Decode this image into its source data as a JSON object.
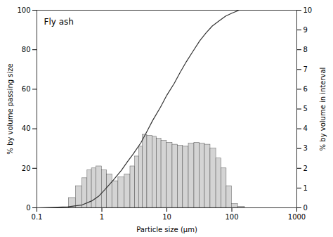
{
  "chart_data": {
    "type": "bar",
    "title": "Fly ash",
    "xlabel": "Particle size (μm)",
    "ylabel": "% by volume passing size",
    "y2label": "% by volume in interval",
    "log": "x",
    "grid": false,
    "xlim": [
      0.1,
      1000
    ],
    "xticks": [
      0.1,
      1,
      10,
      100,
      1000
    ],
    "ylim": [
      0,
      100
    ],
    "yticks": [
      0,
      20,
      40,
      60,
      80,
      100
    ],
    "y2lim": [
      0,
      10
    ],
    "y2ticks": [
      0,
      1,
      2,
      3,
      4,
      5,
      6,
      7,
      8,
      9,
      10
    ],
    "series": [
      {
        "type": "bar",
        "axis": "y2",
        "color": "#d4d4d4",
        "x": [
          0.35,
          0.45,
          0.55,
          0.65,
          0.75,
          0.9,
          1.1,
          1.3,
          1.6,
          2.0,
          2.5,
          3.0,
          3.5,
          4.0,
          4.5,
          5.5,
          6.5,
          7.5,
          9.0,
          11.0,
          13.5,
          16.0,
          19.5,
          24.0,
          29.0,
          35.0,
          42.0,
          52.0,
          63.0,
          76.0,
          90.0,
          110.0,
          140.0
        ],
        "values": [
          0.5,
          1.1,
          1.5,
          1.9,
          2.0,
          2.1,
          1.9,
          1.7,
          1.35,
          1.55,
          1.7,
          2.1,
          2.6,
          3.1,
          3.7,
          3.65,
          3.6,
          3.5,
          3.4,
          3.3,
          3.2,
          3.15,
          3.1,
          3.25,
          3.3,
          3.25,
          3.2,
          3.0,
          2.5,
          2.0,
          1.1,
          0.2,
          0.05
        ]
      },
      {
        "type": "line",
        "color": "#333333",
        "x": [
          0.1,
          0.3,
          0.5,
          0.7,
          0.9,
          1.1,
          1.5,
          2.0,
          2.5,
          3.0,
          4.0,
          5.0,
          6.0,
          8.0,
          10.0,
          13.0,
          16.0,
          20.0,
          25.0,
          32.0,
          40.0,
          50.0,
          63.0,
          80.0,
          100.0,
          130.0
        ],
        "values": [
          0.0,
          0.5,
          1.5,
          3.5,
          6.0,
          9.0,
          14.0,
          19.0,
          23.5,
          27.0,
          33.0,
          39.0,
          44.0,
          51.0,
          57.0,
          63.0,
          68.5,
          74.0,
          79.0,
          84.5,
          88.5,
          92.0,
          94.5,
          97.0,
          98.5,
          100.0
        ]
      }
    ]
  }
}
